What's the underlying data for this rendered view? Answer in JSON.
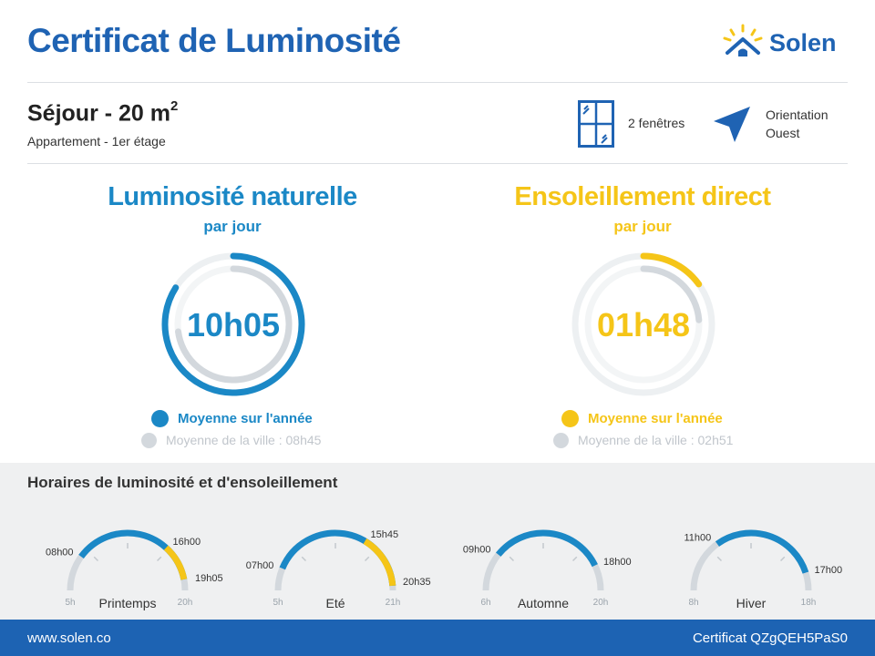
{
  "header": {
    "title": "Certificat de Luminosité",
    "brand": "Solen"
  },
  "room": {
    "name": "Séjour - 20 m",
    "exponent": "2",
    "subtitle": "Appartement - 1er étage"
  },
  "windows": {
    "label": "2 fenêtres",
    "icon": "window-icon"
  },
  "orientation": {
    "line1": "Orientation",
    "line2": "Ouest",
    "icon": "compass-arrow-icon"
  },
  "natural": {
    "title": "Luminosité naturelle",
    "subtitle": "par jour",
    "value": "10h05",
    "legend_main": "Moyenne sur l'année",
    "legend_city": "Moyenne de la ville : 08h45",
    "color": "#1b88c6",
    "hours": 10.0833,
    "city_hours": 8.75
  },
  "sun": {
    "title": "Ensoleillement direct",
    "subtitle": "par jour",
    "value": "01h48",
    "legend_main": "Moyenne sur l'année",
    "legend_city": "Moyenne de la ville : 02h51",
    "color": "#f5c518",
    "hours": 1.8,
    "city_hours": 2.85
  },
  "schedule": {
    "title": "Horaires de luminosité et d'ensoleillement",
    "seasons": [
      {
        "name": "Printemps",
        "min_label": "5h",
        "max_label": "20h",
        "min": 5,
        "max": 20,
        "light_start": 8,
        "light_end": 19.0833,
        "light_start_label": "08h00",
        "light_end_label": "19h05",
        "sun_start": 16,
        "sun_end": 19.0833,
        "sun_start_label": "16h00"
      },
      {
        "name": "Eté",
        "min_label": "5h",
        "max_label": "21h",
        "min": 5,
        "max": 21,
        "light_start": 7,
        "light_end": 20.5833,
        "light_start_label": "07h00",
        "light_end_label": "20h35",
        "sun_start": 15.75,
        "sun_end": 20.5833,
        "sun_start_label": "15h45"
      },
      {
        "name": "Automne",
        "min_label": "6h",
        "max_label": "20h",
        "min": 6,
        "max": 20,
        "light_start": 9,
        "light_end": 18,
        "light_start_label": "09h00",
        "light_end_label": "18h00",
        "sun_start": null,
        "sun_end": null,
        "sun_start_label": ""
      },
      {
        "name": "Hiver",
        "min_label": "8h",
        "max_label": "18h",
        "min": 8,
        "max": 18,
        "light_start": 11,
        "light_end": 17,
        "light_start_label": "11h00",
        "light_end_label": "17h00",
        "sun_start": null,
        "sun_end": null,
        "sun_start_label": ""
      }
    ]
  },
  "footer": {
    "website": "www.solen.co",
    "certificate": "Certificat QZgQEH5PaS0"
  }
}
